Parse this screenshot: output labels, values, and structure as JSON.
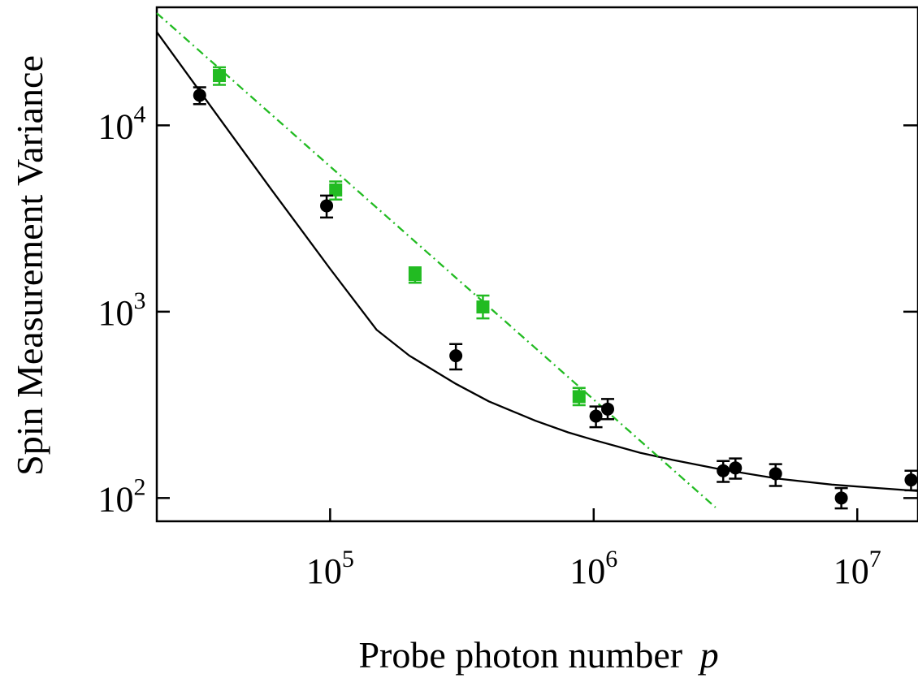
{
  "chart_data": {
    "type": "scatter",
    "title": "",
    "xlabel": "Probe photon number",
    "xlabel_var": "p",
    "ylabel": "Spin Measurement Variance",
    "xscale": "log",
    "yscale": "log",
    "xlim": [
      22000,
      17000000
    ],
    "ylim": [
      75,
      43000
    ],
    "x_ticks": [
      {
        "value": 100000,
        "base": "10",
        "exp": "5"
      },
      {
        "value": 1000000,
        "base": "10",
        "exp": "6"
      },
      {
        "value": 10000000,
        "base": "10",
        "exp": "7"
      }
    ],
    "y_ticks": [
      {
        "value": 100,
        "base": "10",
        "exp": "2"
      },
      {
        "value": 1000,
        "base": "10",
        "exp": "3"
      },
      {
        "value": 10000,
        "base": "10",
        "exp": "4"
      }
    ],
    "grid": false,
    "legend": "none",
    "series": [
      {
        "marker": "square",
        "color": "#22bb22",
        "points": [
          {
            "x": 38000,
            "y": 18500,
            "yerr_low": 16500,
            "yerr_high": 20500
          },
          {
            "x": 105000,
            "y": 4500,
            "yerr_low": 4000,
            "yerr_high": 5000
          },
          {
            "x": 210000,
            "y": 1580,
            "yerr_low": 1430,
            "yerr_high": 1730
          },
          {
            "x": 380000,
            "y": 1060,
            "yerr_low": 920,
            "yerr_high": 1220
          },
          {
            "x": 880000,
            "y": 350,
            "yerr_low": 315,
            "yerr_high": 390
          }
        ]
      },
      {
        "marker": "circle",
        "color": "#000000",
        "points": [
          {
            "x": 32000,
            "y": 14500,
            "yerr_low": 13000,
            "yerr_high": 16000
          },
          {
            "x": 97000,
            "y": 3700,
            "yerr_low": 3200,
            "yerr_high": 4200
          },
          {
            "x": 300000,
            "y": 580,
            "yerr_low": 490,
            "yerr_high": 670
          },
          {
            "x": 1020000,
            "y": 275,
            "yerr_low": 240,
            "yerr_high": 310
          },
          {
            "x": 1130000,
            "y": 300,
            "yerr_low": 265,
            "yerr_high": 340
          },
          {
            "x": 3100000,
            "y": 140,
            "yerr_low": 122,
            "yerr_high": 158
          },
          {
            "x": 3450000,
            "y": 145,
            "yerr_low": 127,
            "yerr_high": 163
          },
          {
            "x": 4900000,
            "y": 135,
            "yerr_low": 116,
            "yerr_high": 152
          },
          {
            "x": 8700000,
            "y": 100,
            "yerr_low": 88,
            "yerr_high": 113
          },
          {
            "x": 16000000,
            "y": 125,
            "yerr_low": 110,
            "yerr_high": 140
          }
        ]
      }
    ],
    "fits": [
      {
        "style": "solid",
        "color": "#000000",
        "points": [
          [
            22000,
            31700
          ],
          [
            30000,
            17300
          ],
          [
            40000,
            9900
          ],
          [
            60000,
            4500
          ],
          [
            80000,
            2600
          ],
          [
            100000,
            1700
          ],
          [
            150000,
            800
          ],
          [
            200000,
            580
          ],
          [
            300000,
            410
          ],
          [
            400000,
            330
          ],
          [
            600000,
            260
          ],
          [
            800000,
            225
          ],
          [
            1000000,
            205
          ],
          [
            1500000,
            175
          ],
          [
            2000000,
            160
          ],
          [
            3000000,
            143
          ],
          [
            5000000,
            127
          ],
          [
            8000000,
            118
          ],
          [
            12000000,
            113
          ],
          [
            17000000,
            109
          ]
        ]
      },
      {
        "style": "dashdot",
        "color": "#22bb22",
        "points": [
          [
            22000,
            40000
          ],
          [
            2900000,
            89
          ]
        ]
      }
    ]
  }
}
